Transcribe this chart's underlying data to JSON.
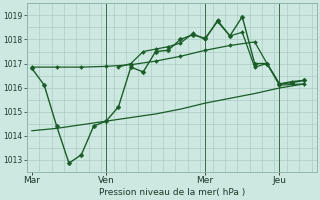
{
  "background_color": "#cce8e0",
  "grid_color": "#aaccc4",
  "line_color": "#1a5c28",
  "x_tick_labels": [
    "Mar",
    "Ven",
    "Mer",
    "Jeu"
  ],
  "x_tick_positions": [
    0,
    30,
    70,
    100
  ],
  "xlabel": "Pression niveau de la mer( hPa )",
  "ylim": [
    1012.5,
    1019.5
  ],
  "yticks": [
    1013,
    1014,
    1015,
    1016,
    1017,
    1018,
    1019
  ],
  "xlim": [
    -2,
    115
  ],
  "vlines_x": [
    30,
    70,
    100
  ],
  "series1_x": [
    0,
    5,
    10,
    15,
    20,
    25,
    30,
    35,
    40,
    45,
    50,
    55,
    60,
    65,
    70,
    75,
    80,
    85,
    90,
    95,
    100,
    105,
    110
  ],
  "series1_y": [
    1016.8,
    1016.1,
    1014.4,
    1012.85,
    1013.2,
    1014.4,
    1014.6,
    1015.2,
    1016.85,
    1016.65,
    1017.5,
    1017.55,
    1018.0,
    1018.2,
    1018.05,
    1018.75,
    1018.15,
    1018.95,
    1017.0,
    1017.0,
    1016.15,
    1016.2,
    1016.3
  ],
  "series2_x": [
    0,
    10,
    20,
    30,
    40,
    50,
    60,
    70,
    80,
    90,
    100,
    110
  ],
  "series2_y": [
    1016.85,
    1016.85,
    1016.85,
    1016.88,
    1016.95,
    1017.1,
    1017.3,
    1017.55,
    1017.75,
    1017.9,
    1016.1,
    1016.15
  ],
  "series3_x": [
    0,
    10,
    20,
    30,
    40,
    50,
    60,
    70,
    80,
    90,
    100,
    110
  ],
  "series3_y": [
    1014.2,
    1014.3,
    1014.45,
    1014.6,
    1014.75,
    1014.9,
    1015.1,
    1015.35,
    1015.55,
    1015.75,
    1015.98,
    1016.15
  ],
  "series4_x": [
    35,
    40,
    45,
    50,
    55,
    60,
    65,
    70,
    75,
    80,
    85,
    90,
    95,
    100,
    105,
    110
  ],
  "series4_y": [
    1016.85,
    1017.0,
    1017.5,
    1017.6,
    1017.7,
    1017.85,
    1018.25,
    1018.0,
    1018.8,
    1018.15,
    1018.3,
    1016.85,
    1017.0,
    1016.15,
    1016.25,
    1016.3
  ],
  "figsize": [
    3.2,
    2.0
  ],
  "dpi": 100
}
